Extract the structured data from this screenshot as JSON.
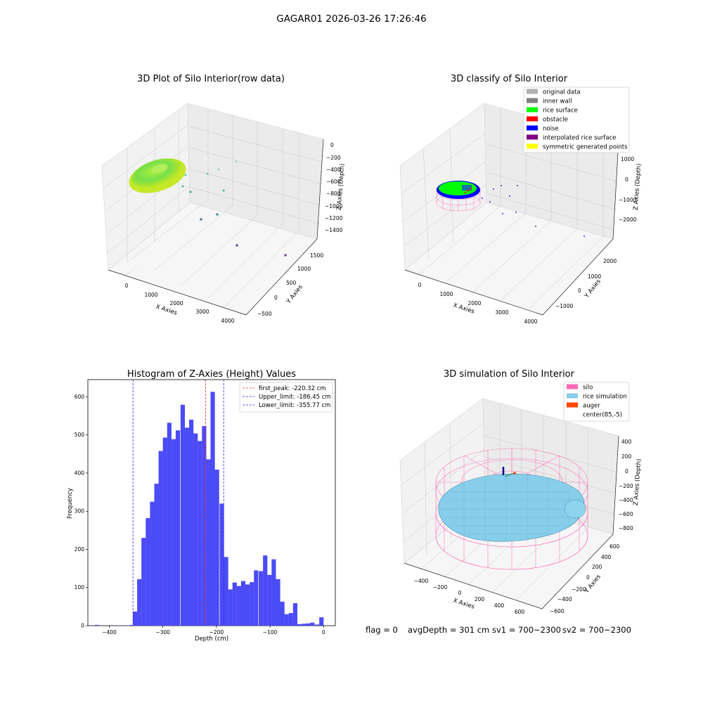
{
  "figure": {
    "suptitle": "GAGAR01 2026-03-26 17:26:46",
    "bottom": {
      "flag": "flag = 0",
      "avg": "avgDepth = 301 cm",
      "sv1": "sv1 = 700~2300",
      "sv2": "sv2 = 700~2300"
    }
  },
  "colors": {
    "hist_bar": "#4b4bf7",
    "peak_line": "#ff2020",
    "limit_line": "#2020ff",
    "silo": "#ff69b4",
    "rice_sim": "#87ceeb",
    "auger": "#ff4500",
    "rice_surface": "#00ff00",
    "noise": "#0000ff",
    "obstacle": "#ff0000"
  },
  "chart_data": [
    {
      "type": "scatter3d",
      "title": "3D Plot of Silo Interior(row data)",
      "xlabel": "X Axies",
      "ylabel": "Y Axies",
      "zlabel": "Z Axies (Depth)",
      "x_ticks": [
        "0",
        "1000",
        "2000",
        "3000",
        "4000"
      ],
      "y_ticks": [
        "−500",
        "0",
        "500",
        "1000",
        "1500"
      ],
      "z_ticks": [
        "0",
        "−200",
        "−400",
        "−600",
        "−800",
        "−1000",
        "−1200",
        "−1400"
      ]
    },
    {
      "type": "scatter3d",
      "title": "3D classify of Silo Interior",
      "xlabel": "X Axies",
      "ylabel": "Y Axies",
      "zlabel": "Z Axies (Depth)",
      "x_ticks": [
        "0",
        "1000",
        "2000",
        "3000",
        "4000"
      ],
      "y_ticks": [
        "−1000",
        "0",
        "1000",
        "2000"
      ],
      "z_ticks": [
        "1000",
        "0",
        "−1000",
        "−2000"
      ],
      "legend": {
        "placement": "top-right",
        "items": [
          {
            "label": "original data",
            "color": "#b0b0b0"
          },
          {
            "label": "inner wall",
            "color": "#808080"
          },
          {
            "label": "rice surface",
            "color": "#00ff00"
          },
          {
            "label": "obstacle",
            "color": "#ff0000"
          },
          {
            "label": "noise",
            "color": "#0000ff"
          },
          {
            "label": "interpolated rice surface",
            "color": "#800080"
          },
          {
            "label": "symmetric generated points",
            "color": "#ffff00"
          }
        ]
      }
    },
    {
      "type": "bar",
      "title": "Histogram of Z-Axies (Height) Values",
      "xlabel": "Depth (cm)",
      "ylabel": "Frequency",
      "xlim": [
        -440,
        22
      ],
      "ylim": [
        0,
        645
      ],
      "x_ticks": [
        -400,
        -300,
        -200,
        -100,
        0
      ],
      "x_tick_labels": [
        "−400",
        "−300",
        "−200",
        "−100",
        "0"
      ],
      "y_ticks": [
        0,
        100,
        200,
        300,
        400,
        500,
        600
      ],
      "bin_width": 8.1,
      "bins": [
        {
          "x": -427,
          "v": 2
        },
        {
          "x": -387,
          "v": 1
        },
        {
          "x": -370,
          "v": 1
        },
        {
          "x": -362,
          "v": 2
        },
        {
          "x": -356,
          "v": 37
        },
        {
          "x": -348,
          "v": 122
        },
        {
          "x": -340,
          "v": 230
        },
        {
          "x": -332,
          "v": 282
        },
        {
          "x": -324,
          "v": 325
        },
        {
          "x": -316,
          "v": 372
        },
        {
          "x": -308,
          "v": 458
        },
        {
          "x": -300,
          "v": 493
        },
        {
          "x": -292,
          "v": 532
        },
        {
          "x": -284,
          "v": 489
        },
        {
          "x": -276,
          "v": 512
        },
        {
          "x": -267,
          "v": 579
        },
        {
          "x": -259,
          "v": 519
        },
        {
          "x": -251,
          "v": 540
        },
        {
          "x": -243,
          "v": 504
        },
        {
          "x": -235,
          "v": 484
        },
        {
          "x": -227,
          "v": 523
        },
        {
          "x": -219,
          "v": 436
        },
        {
          "x": -211,
          "v": 613
        },
        {
          "x": -203,
          "v": 409
        },
        {
          "x": -194,
          "v": 320
        },
        {
          "x": -186,
          "v": 180
        },
        {
          "x": -178,
          "v": 95
        },
        {
          "x": -170,
          "v": 113
        },
        {
          "x": -162,
          "v": 104
        },
        {
          "x": -154,
          "v": 117
        },
        {
          "x": -146,
          "v": 108
        },
        {
          "x": -138,
          "v": 114
        },
        {
          "x": -130,
          "v": 145
        },
        {
          "x": -121,
          "v": 143
        },
        {
          "x": -113,
          "v": 184
        },
        {
          "x": -105,
          "v": 133
        },
        {
          "x": -97,
          "v": 174
        },
        {
          "x": -89,
          "v": 122
        },
        {
          "x": -81,
          "v": 63
        },
        {
          "x": -73,
          "v": 30
        },
        {
          "x": -65,
          "v": 33
        },
        {
          "x": -57,
          "v": 59
        },
        {
          "x": -49,
          "v": 4
        },
        {
          "x": -41,
          "v": 5
        },
        {
          "x": -33,
          "v": 6
        },
        {
          "x": -25,
          "v": 8
        },
        {
          "x": -16,
          "v": 3
        },
        {
          "x": -8,
          "v": 22
        }
      ],
      "lines": [
        {
          "label": "first_peak: -220.32 cm",
          "x": -220.32,
          "color": "#ff2020"
        },
        {
          "label": "Upper_limit: -186.45 cm",
          "x": -186.45,
          "color": "#2020ff"
        },
        {
          "label": "Lower_limit: -355.77 cm",
          "x": -355.77,
          "color": "#2020ff"
        }
      ],
      "legend": {
        "placement": "top-right"
      }
    },
    {
      "type": "surface3d",
      "title": "3D simulation of Silo Interior",
      "xlabel": "X Axies",
      "ylabel": "Y Axies",
      "zlabel": "Z Axies (Depth)",
      "x_ticks": [
        "−400",
        "−200",
        "0",
        "200",
        "400",
        "600"
      ],
      "y_ticks": [
        "−600",
        "−400",
        "−200",
        "0",
        "200",
        "400",
        "600"
      ],
      "z_ticks": [
        "400",
        "200",
        "0",
        "−200",
        "−400",
        "−600",
        "−800"
      ],
      "legend": {
        "placement": "top-right",
        "items": [
          {
            "label": "silo",
            "color": "#ff69b4"
          },
          {
            "label": "rice simulation",
            "color": "#87ceeb"
          },
          {
            "label": "auger",
            "color": "#ff4500"
          },
          {
            "label": "center(85,-5)",
            "color": "#ffffff"
          }
        ]
      }
    }
  ]
}
